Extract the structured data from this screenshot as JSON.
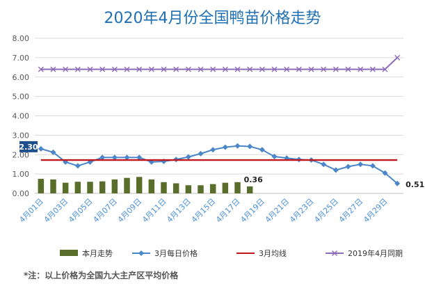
{
  "title": "2020年4月份全国鸭苗价格走势",
  "footnote": "*注：以上价格为全国九大主产区平均价格",
  "chart_data": {
    "type": "bar+line",
    "ylim": [
      0,
      8
    ],
    "yticks": [
      "0.00",
      "1.00",
      "2.00",
      "3.00",
      "4.00",
      "5.00",
      "6.00",
      "7.00",
      "8.00"
    ],
    "grid": true,
    "legend_position": "bottom",
    "x_labels": [
      "4月01日",
      "4月03日",
      "4月05日",
      "4月07日",
      "4月09日",
      "4月11日",
      "4月13日",
      "4月15日",
      "4月17日",
      "4月19日",
      "4月21日",
      "4月23日",
      "4月25日",
      "4月27日",
      "4月29日"
    ],
    "x_label_days": [
      1,
      3,
      5,
      7,
      9,
      11,
      13,
      15,
      17,
      19,
      21,
      23,
      25,
      27,
      29
    ],
    "days": [
      1,
      2,
      3,
      4,
      5,
      6,
      7,
      8,
      9,
      10,
      11,
      12,
      13,
      14,
      15,
      16,
      17,
      18,
      19,
      20,
      21,
      22,
      23,
      24,
      25,
      26,
      27,
      28,
      29,
      30
    ],
    "series": [
      {
        "name": "本月走势",
        "type": "bar",
        "color": "#5a6e2c",
        "days": [
          1,
          2,
          3,
          4,
          5,
          6,
          7,
          8,
          9,
          10,
          11,
          12,
          13,
          14,
          15,
          16,
          17,
          18
        ],
        "values": [
          0.75,
          0.72,
          0.55,
          0.6,
          0.6,
          0.62,
          0.72,
          0.8,
          0.85,
          0.72,
          0.58,
          0.52,
          0.42,
          0.42,
          0.48,
          0.55,
          0.58,
          0.36
        ]
      },
      {
        "name": "3月每日价格",
        "type": "line",
        "color": "#4a86c8",
        "marker": "diamond",
        "values": [
          2.3,
          2.12,
          1.62,
          1.42,
          1.62,
          1.85,
          1.85,
          1.85,
          1.85,
          1.62,
          1.65,
          1.75,
          1.88,
          2.05,
          2.25,
          2.38,
          2.45,
          2.42,
          2.25,
          1.9,
          1.82,
          1.75,
          1.72,
          1.5,
          1.2,
          1.38,
          1.5,
          1.42,
          1.05,
          0.51
        ]
      },
      {
        "name": "3月均线",
        "type": "line",
        "color": "#c0161d",
        "marker": "none",
        "values": [
          1.72,
          1.72,
          1.72,
          1.72,
          1.72,
          1.72,
          1.72,
          1.72,
          1.72,
          1.72,
          1.72,
          1.72,
          1.72,
          1.72,
          1.72,
          1.72,
          1.72,
          1.72,
          1.72,
          1.72,
          1.72,
          1.72,
          1.72,
          1.72,
          1.72,
          1.72,
          1.72,
          1.72,
          1.72,
          1.72
        ]
      },
      {
        "name": "2019年4月同期",
        "type": "line",
        "color": "#8e6bb8",
        "marker": "x",
        "values": [
          6.4,
          6.4,
          6.4,
          6.4,
          6.4,
          6.4,
          6.4,
          6.4,
          6.4,
          6.4,
          6.4,
          6.4,
          6.4,
          6.4,
          6.4,
          6.4,
          6.4,
          6.4,
          6.4,
          6.4,
          6.4,
          6.4,
          6.4,
          6.4,
          6.4,
          6.4,
          6.4,
          6.4,
          6.4,
          7
        ]
      }
    ],
    "annotations": [
      {
        "text": "2.30",
        "day": 1,
        "value": 2.3,
        "style": "callout"
      },
      {
        "text": "0.36",
        "day": 18,
        "value": 0.36,
        "style": "above"
      },
      {
        "text": "0.51",
        "day": 30,
        "value": 0.51,
        "style": "right"
      }
    ]
  }
}
